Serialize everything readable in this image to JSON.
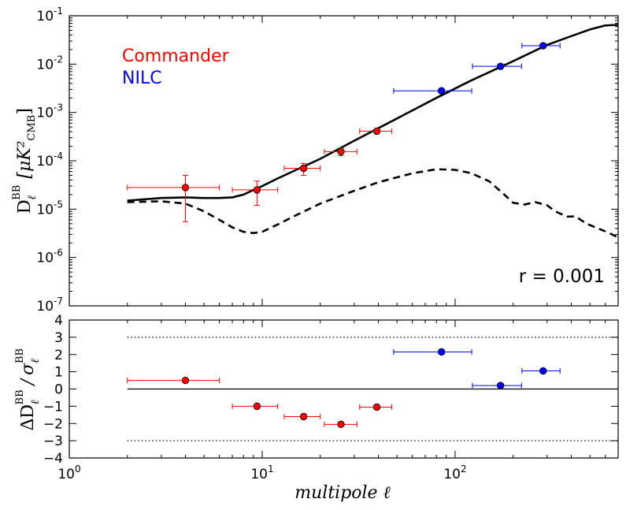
{
  "chart_data": [
    {
      "type": "scatter",
      "panel": "top",
      "title": "",
      "xlabel": "",
      "ylabel_base": "D",
      "ylabel_sub": "ℓ",
      "ylabel_sup": "BB",
      "ylabel_units": "[μK²",
      "ylabel_units_sub": "CMB",
      "ylabel_units_close": "]",
      "xscale": "log",
      "yscale": "log",
      "xlim": [
        1,
        700
      ],
      "ylim": [
        1e-07,
        0.1
      ],
      "ytick_values": [
        1e-07,
        1e-06,
        1e-05,
        0.0001,
        0.001,
        0.01,
        0.1
      ],
      "ytick_exponents": [
        "-7",
        "-6",
        "-5",
        "-4",
        "-3",
        "-2",
        "-1"
      ],
      "ytick_base": "10",
      "annotation": "r = 0.001",
      "legend": [
        {
          "name": "Commander",
          "color": "#ff0000"
        },
        {
          "name": "NILC",
          "color": "#0000ff"
        }
      ],
      "series": [
        {
          "name": "Commander",
          "color": "#ff0000",
          "points": [
            {
              "x": 4,
              "y": 2.8e-05,
              "xerr_low": 2,
              "xerr_high": 6,
              "yerr_low": 5.5e-06,
              "yerr_high": 5e-05
            },
            {
              "x": 9.4,
              "y": 2.5e-05,
              "xerr_low": 7,
              "xerr_high": 12,
              "yerr_low": 1.2e-05,
              "yerr_high": 3.8e-05
            },
            {
              "x": 16.4,
              "y": 7e-05,
              "xerr_low": 13,
              "xerr_high": 20,
              "yerr_low": 5e-05,
              "yerr_high": 8.8e-05
            },
            {
              "x": 25.6,
              "y": 0.000155,
              "xerr_low": 21,
              "xerr_high": 31,
              "yerr_low": 0.000128,
              "yerr_high": 0.000185
            },
            {
              "x": 39.3,
              "y": 0.00041,
              "xerr_low": 32,
              "xerr_high": 47,
              "yerr_low": 0.00036,
              "yerr_high": 0.00046
            }
          ]
        },
        {
          "name": "NILC",
          "color": "#0000ff",
          "points": [
            {
              "x": 85,
              "y": 0.0028,
              "xerr_low": 48,
              "xerr_high": 122
            },
            {
              "x": 172,
              "y": 0.009,
              "xerr_low": 123,
              "xerr_high": 221
            },
            {
              "x": 286,
              "y": 0.024,
              "xerr_low": 222,
              "xerr_high": 350
            }
          ]
        }
      ],
      "model_curves": [
        {
          "name": "model total",
          "style": "solid",
          "color": "#000000",
          "x": [
            2,
            3,
            4,
            5,
            6,
            7,
            8,
            9,
            10,
            12,
            15,
            20,
            30,
            50,
            80,
            120,
            200,
            300,
            400,
            500,
            600,
            700
          ],
          "y": [
            1.5e-05,
            1.7e-05,
            1.75e-05,
            1.7e-05,
            1.7e-05,
            1.75e-05,
            2e-05,
            2.5e-05,
            3e-05,
            4.3e-05,
            6.5e-05,
            0.00011,
            0.00026,
            0.00075,
            0.002,
            0.0045,
            0.0115,
            0.025,
            0.038,
            0.052,
            0.063,
            0.065
          ]
        },
        {
          "name": "model tensor",
          "style": "dashed",
          "color": "#000000",
          "x": [
            2,
            3,
            4,
            5,
            6,
            7,
            8,
            9,
            10,
            12,
            15,
            20,
            30,
            40,
            60,
            80,
            100,
            120,
            150,
            180,
            200,
            230,
            260,
            300,
            330,
            380,
            420,
            480,
            550,
            620,
            700
          ],
          "y": [
            1.4e-05,
            1.45e-05,
            1.3e-05,
            9e-06,
            6e-06,
            4.2e-06,
            3.4e-06,
            3.2e-06,
            3.4e-06,
            4.8e-06,
            7.5e-06,
            1.3e-05,
            2.4e-05,
            3.6e-05,
            5.5e-05,
            6.7e-05,
            6.5e-05,
            5.6e-05,
            3.8e-05,
            2e-05,
            1.35e-05,
            1.25e-05,
            1.4e-05,
            1.2e-05,
            9e-06,
            7e-06,
            7.1e-06,
            5e-06,
            4e-06,
            3.3e-06,
            2.6e-06
          ]
        }
      ]
    },
    {
      "type": "scatter",
      "panel": "bottom",
      "title": "",
      "xlabel": "multipole ℓ",
      "ylabel": "ΔD_ℓ^BB / σ_ℓ^BB",
      "ylabel_num": "ΔD",
      "ylabel_num_sub": "ℓ",
      "ylabel_num_sup": "BB",
      "ylabel_slash": "/",
      "ylabel_den": "σ",
      "ylabel_den_sub": "ℓ",
      "ylabel_den_sup": "BB",
      "xscale": "log",
      "xlim": [
        1,
        700
      ],
      "ylim": [
        -4,
        4
      ],
      "xtick_values": [
        1,
        10,
        100
      ],
      "xtick_exponents": [
        "0",
        "1",
        "2"
      ],
      "xtick_base": "10",
      "ytick_values": [
        -4,
        -3,
        -2,
        -1,
        0,
        1,
        2,
        3,
        4
      ],
      "ytick_labels": [
        "−4",
        "−3",
        "−2",
        "−1",
        "0",
        "1",
        "2",
        "3",
        "4"
      ],
      "reference_lines": [
        {
          "y": 0,
          "style": "solid",
          "x_range": [
            2,
            700
          ]
        },
        {
          "y": 3,
          "style": "dotted",
          "x_range": [
            2,
            700
          ]
        },
        {
          "y": -3,
          "style": "dotted",
          "x_range": [
            2,
            700
          ]
        }
      ],
      "series": [
        {
          "name": "Commander",
          "color": "#ff0000",
          "points": [
            {
              "x": 4,
              "y": 0.5,
              "xerr_low": 2,
              "xerr_high": 6
            },
            {
              "x": 9.4,
              "y": -1.0,
              "xerr_low": 7,
              "xerr_high": 12
            },
            {
              "x": 16.4,
              "y": -1.6,
              "xerr_low": 13,
              "xerr_high": 20
            },
            {
              "x": 25.6,
              "y": -2.05,
              "xerr_low": 21,
              "xerr_high": 31
            },
            {
              "x": 39.3,
              "y": -1.05,
              "xerr_low": 32,
              "xerr_high": 47
            }
          ]
        },
        {
          "name": "NILC",
          "color": "#0000ff",
          "points": [
            {
              "x": 85,
              "y": 2.15,
              "xerr_low": 48,
              "xerr_high": 122
            },
            {
              "x": 172,
              "y": 0.2,
              "xerr_low": 123,
              "xerr_high": 221
            },
            {
              "x": 286,
              "y": 1.05,
              "xerr_low": 222,
              "xerr_high": 350
            }
          ]
        }
      ]
    }
  ]
}
